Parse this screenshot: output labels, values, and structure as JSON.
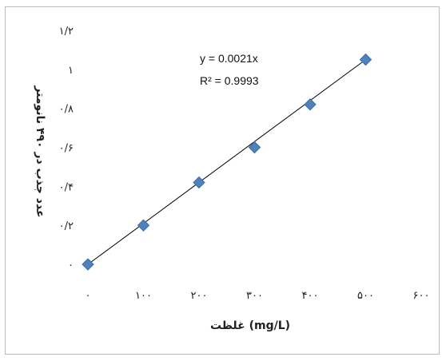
{
  "chart_data": {
    "type": "scatter",
    "title": "",
    "xlabel": "غلظت (mg/L)",
    "ylabel": "عدد جذب در ۴۹۰ نانومتر",
    "xlim": [
      0,
      600
    ],
    "ylim": [
      0,
      1.2
    ],
    "x_ticks": [
      {
        "value": 0,
        "label": "۰"
      },
      {
        "value": 100,
        "label": "۱۰۰"
      },
      {
        "value": 200,
        "label": "۲۰۰"
      },
      {
        "value": 300,
        "label": "۳۰۰"
      },
      {
        "value": 400,
        "label": "۴۰۰"
      },
      {
        "value": 500,
        "label": "۵۰۰"
      },
      {
        "value": 600,
        "label": "۶۰۰"
      }
    ],
    "y_ticks": [
      {
        "value": 0,
        "label": "۰"
      },
      {
        "value": 0.2,
        "label": "۰/۲"
      },
      {
        "value": 0.4,
        "label": "۰/۴"
      },
      {
        "value": 0.6,
        "label": "۰/۶"
      },
      {
        "value": 0.8,
        "label": "۰/۸"
      },
      {
        "value": 1.0,
        "label": "۱"
      },
      {
        "value": 1.2,
        "label": "۱/۲"
      }
    ],
    "series": [
      {
        "x": [
          0,
          100,
          200,
          300,
          400,
          500
        ],
        "y": [
          0,
          0.2,
          0.42,
          0.6,
          0.82,
          1.05
        ]
      }
    ],
    "trendline": {
      "slope": 0.0021,
      "x_range": [
        0,
        500
      ]
    },
    "annotations": {
      "equation": "y = 0.0021x",
      "r2": "R² = 0.9993"
    },
    "grid": false,
    "legend": "none",
    "colors": {
      "marker": "#4f81bd",
      "marker_edge": "#3a6ea5",
      "trendline": "#000000"
    }
  }
}
